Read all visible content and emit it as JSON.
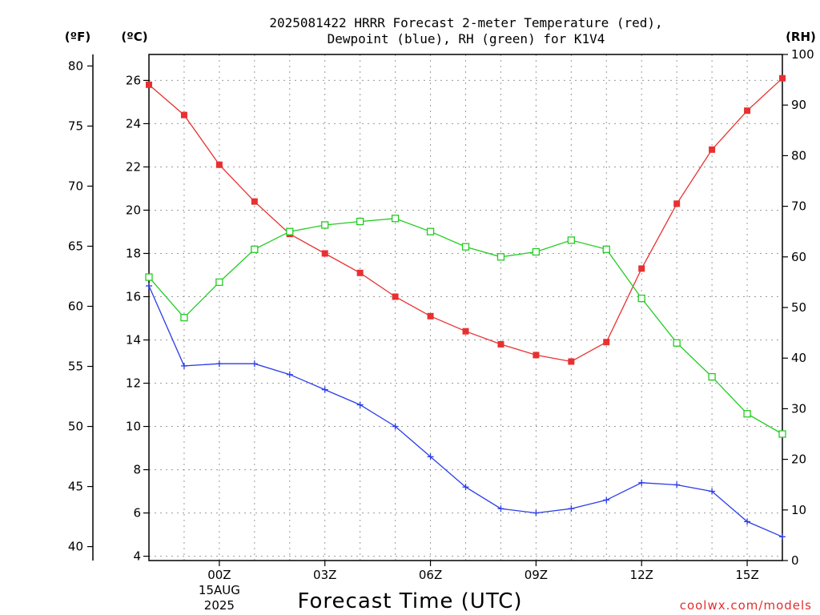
{
  "chart_data": {
    "type": "line",
    "title_lines": [
      "2025081422 HRRR Forecast 2-meter Temperature (red),",
      "Dewpoint (blue), RH (green) for K1V4"
    ],
    "xlabel": "Forecast Time (UTC)",
    "credit": "coolwx.com/models",
    "units": {
      "fahrenheit": "(ºF)",
      "celsius": "(ºC)",
      "rh": "(RH)"
    },
    "x_hours": [
      -2,
      -1,
      0,
      1,
      2,
      3,
      4,
      5,
      6,
      7,
      8,
      9,
      10,
      11,
      12,
      13,
      14,
      15,
      16
    ],
    "x_ticks": [
      {
        "hour": 0,
        "label": "00Z",
        "sub": [
          "15AUG",
          "2025"
        ]
      },
      {
        "hour": 3,
        "label": "03Z",
        "sub": []
      },
      {
        "hour": 6,
        "label": "06Z",
        "sub": []
      },
      {
        "hour": 9,
        "label": "09Z",
        "sub": []
      },
      {
        "hour": 12,
        "label": "12Z",
        "sub": []
      },
      {
        "hour": 15,
        "label": "15Z",
        "sub": []
      }
    ],
    "x_range_hours": [
      -2,
      16
    ],
    "celsius_axis": {
      "range": [
        3.8,
        27.2
      ],
      "ticks": [
        4,
        6,
        8,
        10,
        12,
        14,
        16,
        18,
        20,
        22,
        24,
        26
      ]
    },
    "fahrenheit_ticks": [
      40,
      45,
      50,
      55,
      60,
      65,
      70,
      75,
      80
    ],
    "rh_axis": {
      "range": [
        0,
        100
      ],
      "ticks": [
        0,
        10,
        20,
        30,
        40,
        50,
        60,
        70,
        80,
        90,
        100
      ]
    },
    "grid": true,
    "series": [
      {
        "name": "Temperature",
        "axis": "celsius",
        "color": "#e83030",
        "marker": "filled-square",
        "values": [
          25.8,
          24.4,
          22.1,
          20.4,
          18.9,
          18.0,
          17.1,
          16.0,
          15.1,
          14.4,
          13.8,
          13.3,
          13.0,
          13.9,
          17.3,
          20.3,
          22.8,
          24.6,
          26.1
        ]
      },
      {
        "name": "Dewpoint",
        "axis": "celsius",
        "color": "#2a3de8",
        "marker": "plus",
        "values": [
          16.5,
          12.8,
          12.9,
          12.9,
          12.4,
          11.7,
          11.0,
          10.0,
          8.6,
          7.2,
          6.2,
          6.0,
          6.2,
          6.6,
          7.4,
          7.3,
          7.0,
          5.6,
          4.9
        ]
      },
      {
        "name": "Relative Humidity",
        "axis": "rh",
        "color": "#22cc22",
        "marker": "open-square",
        "values": [
          56,
          48,
          55,
          61.5,
          65,
          66.3,
          67,
          67.6,
          65,
          62,
          60,
          61,
          63.3,
          61.5,
          51.8,
          43,
          36.3,
          29,
          25
        ]
      }
    ]
  }
}
